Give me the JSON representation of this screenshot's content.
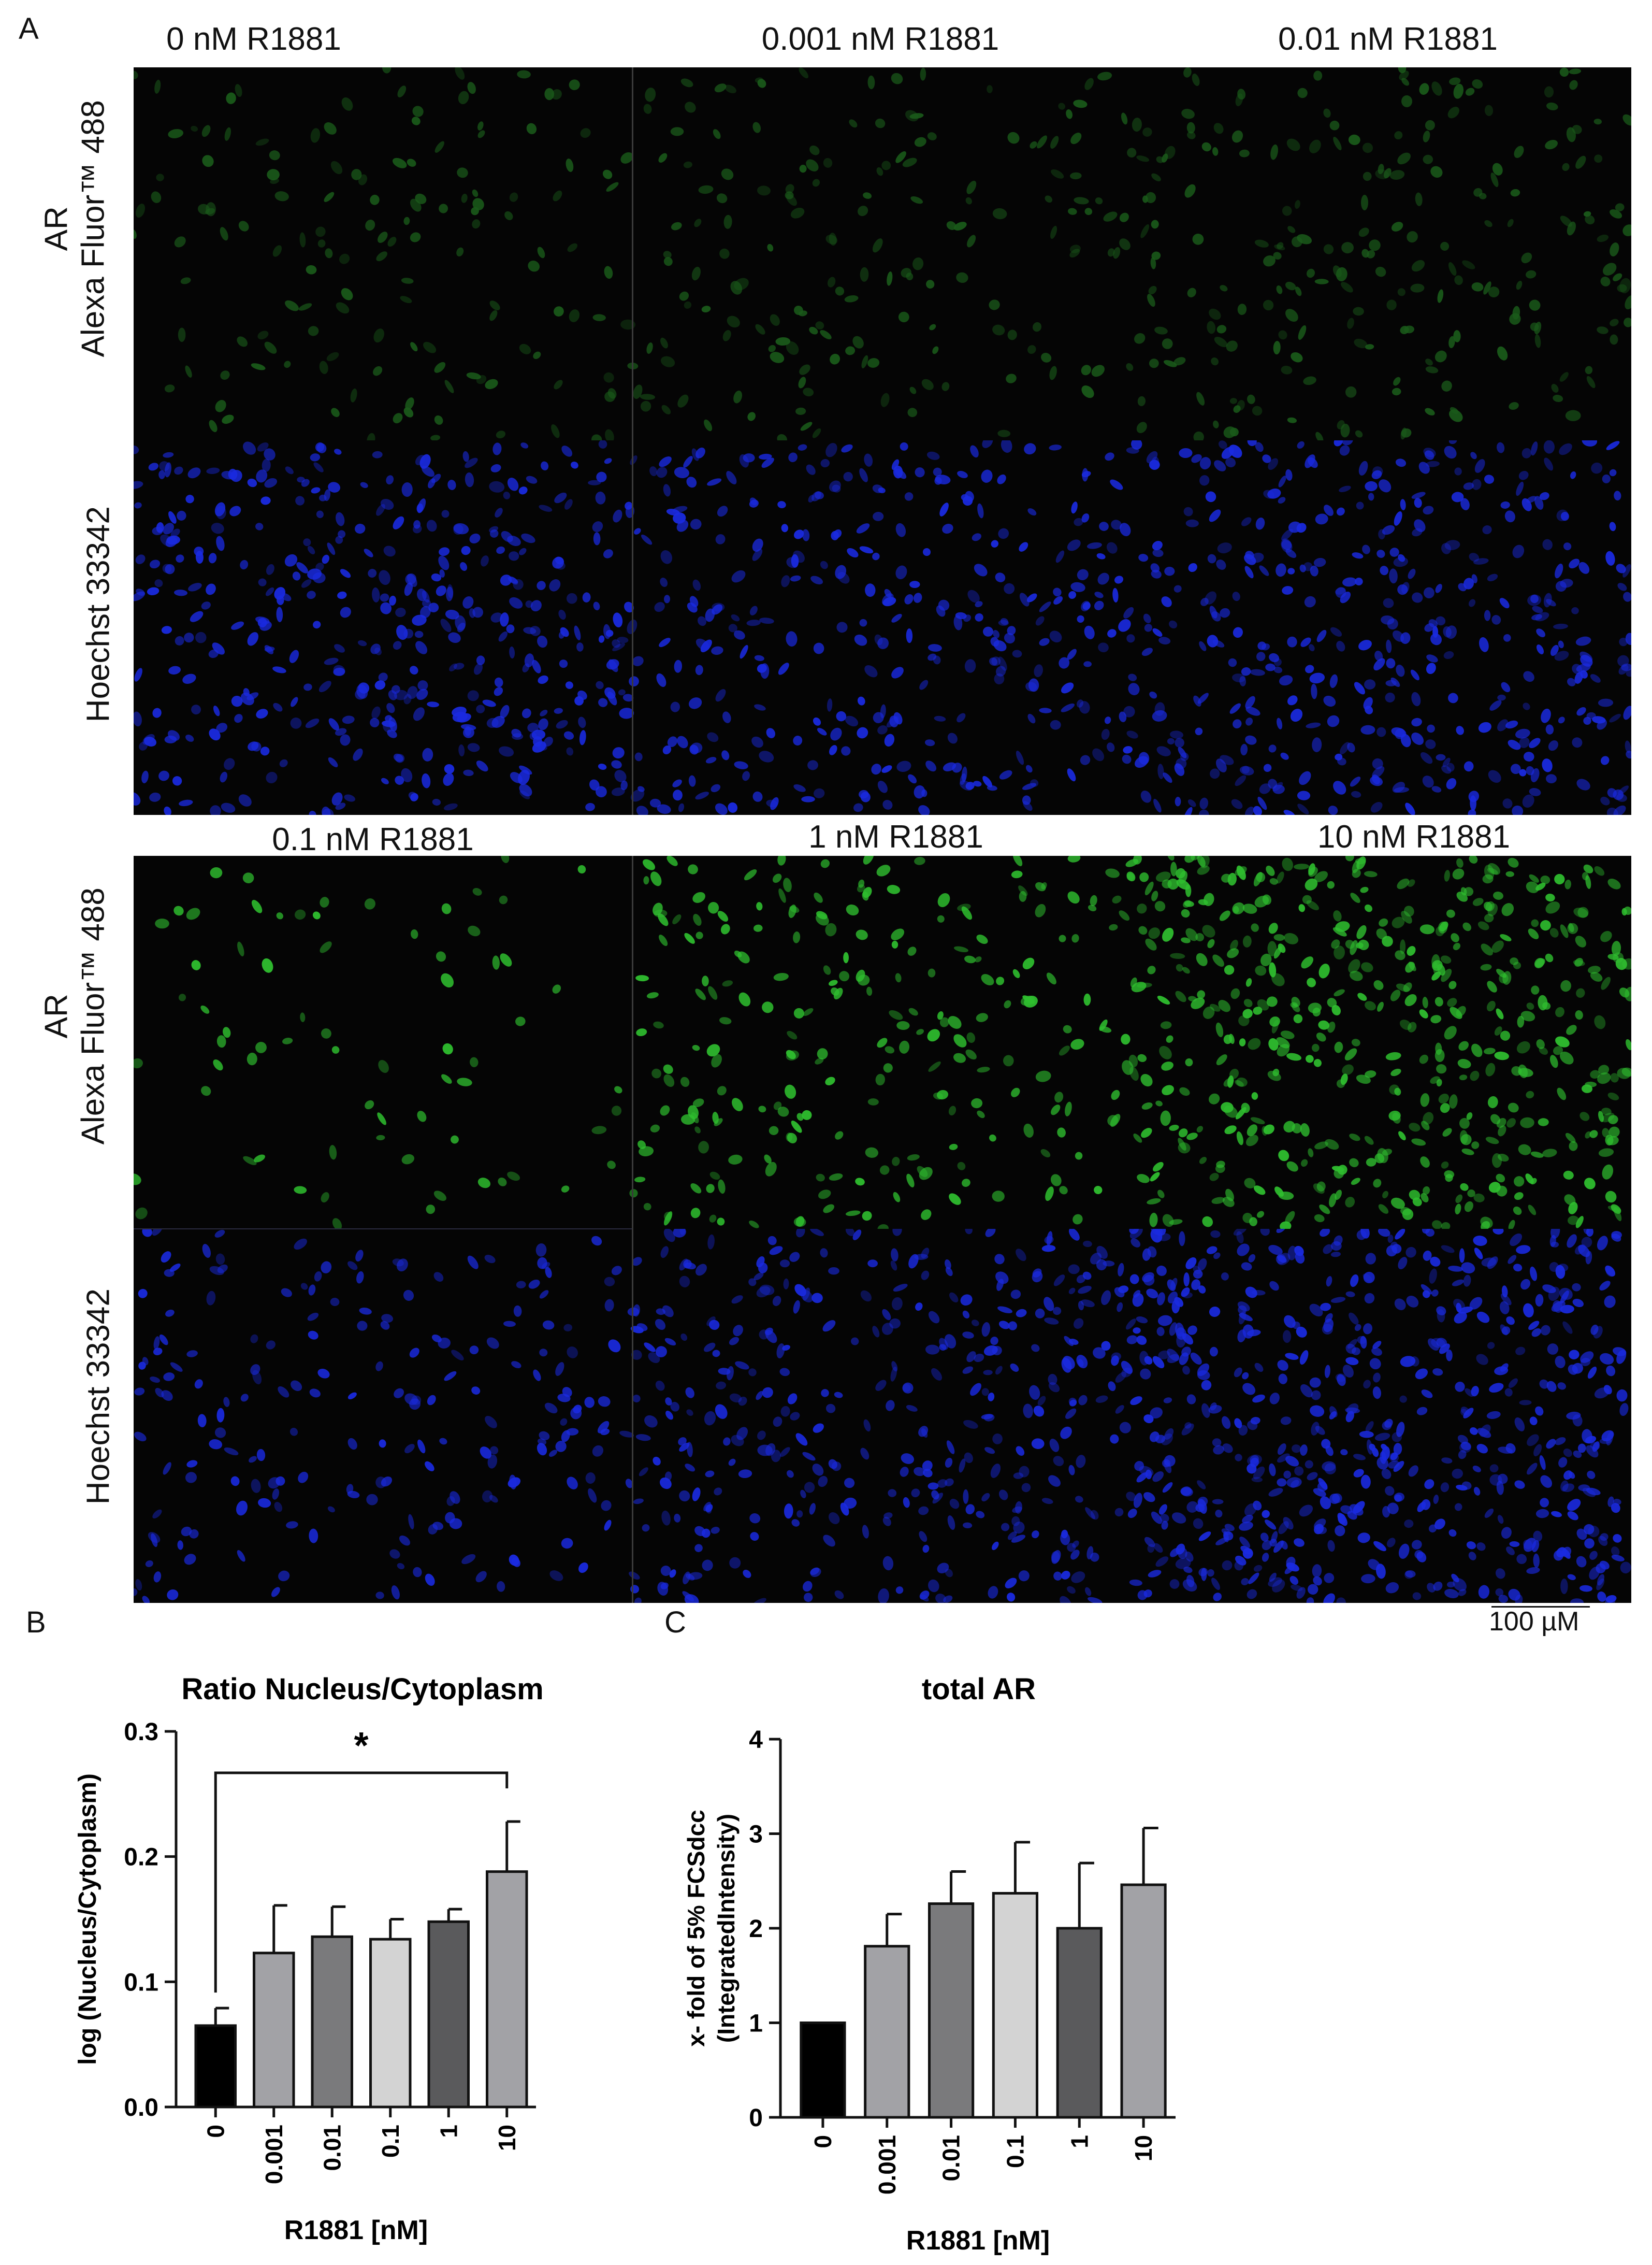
{
  "panel_a": {
    "letter": "A",
    "top_columns": [
      "0 nM R1881",
      "0.001 nM R1881",
      "0.01 nM R1881"
    ],
    "bottom_columns": [
      "0.1 nM R1881",
      "1 nM R1881",
      "10 nM R1881"
    ],
    "row_label_ar_line1": "AR",
    "row_label_ar_line2": "Alexa Fluor™ 488",
    "row_label_hoechst": "Hoechst 33342",
    "scale_bar_label": "100 µM",
    "colors": {
      "green_channel": "#2fbf2f",
      "blue_channel": "#1a2ae0"
    }
  },
  "panel_b": {
    "letter": "B"
  },
  "panel_c": {
    "letter": "C"
  },
  "chart_data": [
    {
      "type": "bar",
      "title": "Ratio Nucleus/Cytoplasm",
      "xlabel": "R1881 [nM]",
      "ylabel": "log (Nucleus/Cytoplasm)",
      "categories": [
        "0",
        "0.001",
        "0.01",
        "0.1",
        "1",
        "10"
      ],
      "values": [
        0.065,
        0.123,
        0.136,
        0.134,
        0.148,
        0.188
      ],
      "errors": [
        0.014,
        0.038,
        0.024,
        0.016,
        0.01,
        0.04
      ],
      "bar_colors": [
        "#000000",
        "#a2a2a6",
        "#7a7a7c",
        "#d3d3d3",
        "#5a5a5c",
        "#a2a2a6"
      ],
      "ylim": [
        0,
        0.3
      ],
      "yticks": [
        "0.0",
        "0.1",
        "0.2",
        "0.3"
      ],
      "significance": {
        "from": "0",
        "to": "10",
        "label": "*"
      }
    },
    {
      "type": "bar",
      "title": "total AR",
      "xlabel": "R1881 [nM]",
      "ylabel_line1": "x- fold of 5% FCSdcc",
      "ylabel_line2": "(IntegratedIntensity)",
      "categories": [
        "0",
        "0.001",
        "0.01",
        "0.1",
        "1",
        "10"
      ],
      "values": [
        1.0,
        1.81,
        2.26,
        2.37,
        2.0,
        2.46
      ],
      "errors": [
        0.0,
        0.34,
        0.34,
        0.54,
        0.69,
        0.6
      ],
      "bar_colors": [
        "#000000",
        "#a2a2a6",
        "#7a7a7c",
        "#d3d3d3",
        "#5a5a5c",
        "#a2a2a6"
      ],
      "ylim": [
        0,
        4
      ],
      "yticks": [
        "0",
        "1",
        "2",
        "3",
        "4"
      ]
    }
  ]
}
